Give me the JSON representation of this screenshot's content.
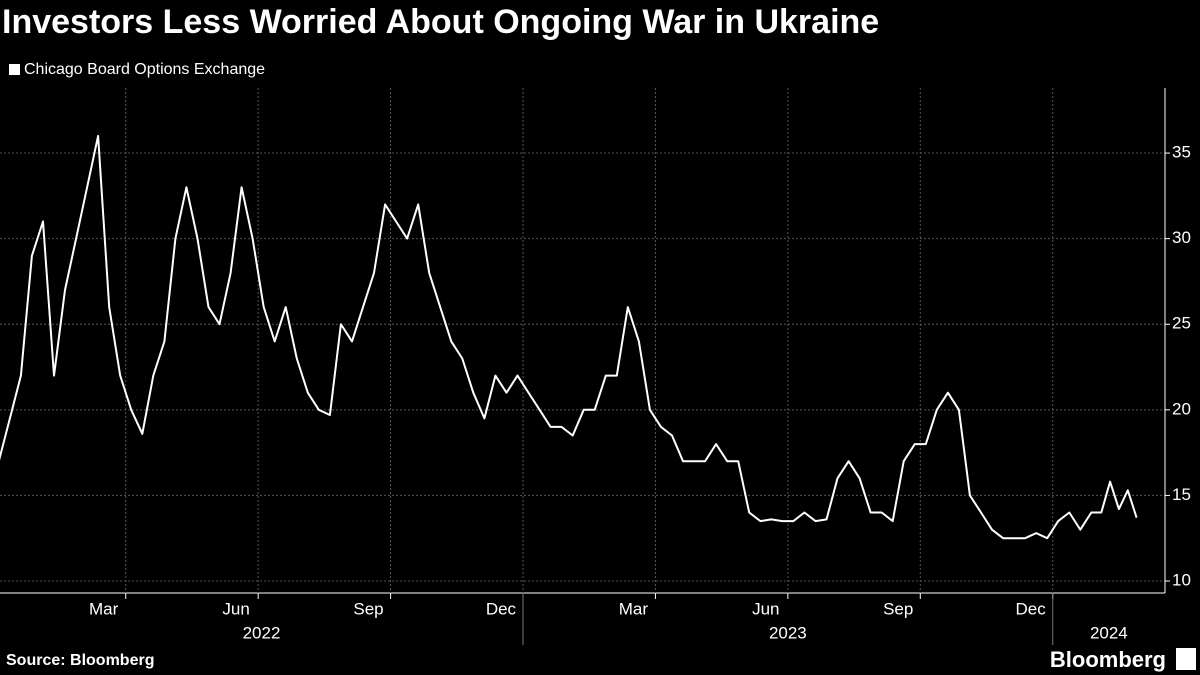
{
  "chart_data": {
    "type": "line",
    "title": "Investors Less Worried About Ongoing War in Ukraine",
    "source": "Source: Bloomberg",
    "brand": "Bloomberg",
    "x": [
      "2022-01",
      "2022-01",
      "2022-01",
      "2022-01",
      "2022-02",
      "2022-02",
      "2022-02",
      "2022-02",
      "2022-03",
      "2022-03",
      "2022-03",
      "2022-03",
      "2022-04",
      "2022-04",
      "2022-04",
      "2022-04",
      "2022-05",
      "2022-05",
      "2022-05",
      "2022-05",
      "2022-06",
      "2022-06",
      "2022-06",
      "2022-06",
      "2022-07",
      "2022-07",
      "2022-07",
      "2022-07",
      "2022-08",
      "2022-08",
      "2022-08",
      "2022-08",
      "2022-09",
      "2022-09",
      "2022-09",
      "2022-09",
      "2022-10",
      "2022-10",
      "2022-10",
      "2022-10",
      "2022-11",
      "2022-11",
      "2022-11",
      "2022-11",
      "2022-12",
      "2022-12",
      "2022-12",
      "2022-12",
      "2023-01",
      "2023-01",
      "2023-01",
      "2023-01",
      "2023-02",
      "2023-02",
      "2023-02",
      "2023-02",
      "2023-03",
      "2023-03",
      "2023-03",
      "2023-03",
      "2023-04",
      "2023-04",
      "2023-04",
      "2023-04",
      "2023-05",
      "2023-05",
      "2023-05",
      "2023-05",
      "2023-06",
      "2023-06",
      "2023-06",
      "2023-06",
      "2023-07",
      "2023-07",
      "2023-07",
      "2023-07",
      "2023-08",
      "2023-08",
      "2023-08",
      "2023-08",
      "2023-09",
      "2023-09",
      "2023-09",
      "2023-09",
      "2023-10",
      "2023-10",
      "2023-10",
      "2023-10",
      "2023-11",
      "2023-11",
      "2023-11",
      "2023-11",
      "2023-12",
      "2023-12",
      "2023-12",
      "2023-12",
      "2024-01",
      "2024-01",
      "2024-01",
      "2024-01",
      "2024-02",
      "2024-02",
      "2024-02",
      "2024-02",
      "2024-02"
    ],
    "series": [
      {
        "name": "Chicago Board Options Exchange",
        "color": "#ffffff",
        "values": [
          17,
          19.5,
          22,
          29,
          31,
          22,
          27,
          30,
          33,
          36,
          26,
          22,
          20,
          18.6,
          22,
          24,
          30,
          33,
          30,
          26,
          25,
          28,
          33,
          30,
          26,
          24,
          26,
          23,
          21,
          20,
          19.7,
          25,
          24,
          26,
          28,
          32,
          31,
          30,
          32,
          28,
          26,
          24,
          23,
          21,
          19.5,
          22,
          21,
          22,
          21,
          20,
          19,
          19,
          18.5,
          20,
          20,
          22,
          22,
          26,
          24,
          20,
          19,
          18.5,
          17,
          17,
          17,
          18,
          17,
          17,
          14,
          13.5,
          13.6,
          13.5,
          13.5,
          14,
          13.5,
          13.6,
          16,
          17,
          16,
          14,
          14,
          13.5,
          17,
          18,
          18,
          20,
          21,
          20,
          15,
          14,
          13,
          12.5,
          12.5,
          12.5,
          12.8,
          12.5,
          13.5,
          14,
          13,
          14,
          14,
          15.8,
          14.2,
          15.3,
          13.7
        ]
      }
    ],
    "xlim": [
      "2022-01",
      "2024-03"
    ],
    "xticks": [
      {
        "value": "2022-03",
        "label": "Mar"
      },
      {
        "value": "2022-06",
        "label": "Jun"
      },
      {
        "value": "2022-09",
        "label": "Sep"
      },
      {
        "value": "2022-12",
        "label": "Dec"
      },
      {
        "value": "2023-03",
        "label": "Mar"
      },
      {
        "value": "2023-06",
        "label": "Jun"
      },
      {
        "value": "2023-09",
        "label": "Sep"
      },
      {
        "value": "2023-12",
        "label": "Dec"
      }
    ],
    "years": [
      "2022",
      "2023",
      "2024"
    ],
    "ylim": [
      9.3,
      38.8
    ],
    "yticks": [
      10,
      15,
      20,
      25,
      30,
      35
    ],
    "grid": true
  }
}
